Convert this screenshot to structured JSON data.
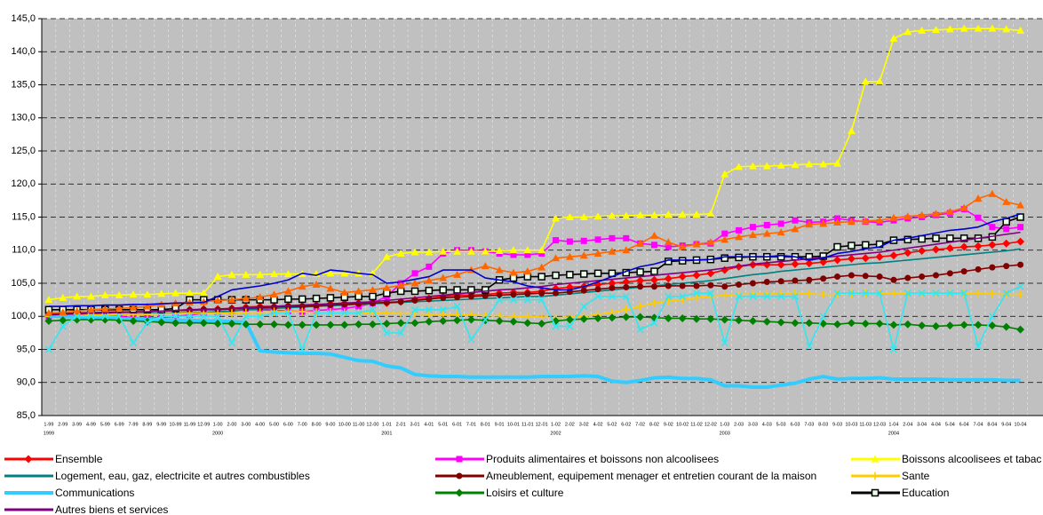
{
  "chart_data": {
    "type": "line",
    "categories": [
      "1-99",
      "2-99",
      "3-99",
      "4-99",
      "5-99",
      "6-99",
      "7-99",
      "8-99",
      "9-99",
      "10-99",
      "11-99",
      "12-99",
      "1-00",
      "2-00",
      "3-00",
      "4-00",
      "5-00",
      "6-00",
      "7-00",
      "8-00",
      "9-00",
      "10-00",
      "11-00",
      "12-00",
      "1-01",
      "2-01",
      "3-01",
      "4-01",
      "5-01",
      "6-01",
      "7-01",
      "8-01",
      "9-01",
      "10-01",
      "11-01",
      "12-01",
      "1-02",
      "2-02",
      "3-02",
      "4-02",
      "5-02",
      "6-02",
      "7-02",
      "8-02",
      "9-02",
      "10-02",
      "11-02",
      "12-02",
      "1-03",
      "2-03",
      "3-03",
      "4-03",
      "5-03",
      "6-03",
      "7-03",
      "8-03",
      "9-03",
      "10-03",
      "11-03",
      "12-03",
      "1-04",
      "2-04",
      "3-04",
      "4-04",
      "5-04",
      "6-04",
      "7-04",
      "8-04",
      "9-04",
      "10-04"
    ],
    "category_groups": [
      "1999",
      null,
      null,
      null,
      null,
      null,
      null,
      null,
      null,
      null,
      null,
      null,
      "2000",
      null,
      null,
      null,
      null,
      null,
      null,
      null,
      null,
      null,
      null,
      null,
      "2001",
      null,
      null,
      null,
      null,
      null,
      null,
      null,
      null,
      null,
      null,
      null,
      "2002",
      null,
      null,
      null,
      null,
      null,
      null,
      null,
      null,
      null,
      null,
      null,
      "2003",
      null,
      null,
      null,
      null,
      null,
      null,
      null,
      null,
      null,
      null,
      null,
      "2004",
      null,
      null,
      null,
      null,
      null,
      null,
      null,
      null,
      null
    ],
    "ylim": [
      85,
      145
    ],
    "yticks": [
      {
        "value": 85,
        "label": "85,0"
      },
      {
        "value": 90,
        "label": "90,0"
      },
      {
        "value": 95,
        "label": "95,0"
      },
      {
        "value": 100,
        "label": "100,0"
      },
      {
        "value": 105,
        "label": "105,0"
      },
      {
        "value": 110,
        "label": "110,0"
      },
      {
        "value": 115,
        "label": "115,0"
      },
      {
        "value": 120,
        "label": "120,0"
      },
      {
        "value": 125,
        "label": "125,0"
      },
      {
        "value": 130,
        "label": "130,0"
      },
      {
        "value": 135,
        "label": "135,0"
      },
      {
        "value": 140,
        "label": "140,0"
      },
      {
        "value": 145,
        "label": "145,0"
      }
    ],
    "grid": true,
    "series": [
      {
        "name": "Ensemble",
        "color": "#ff0000",
        "marker": "diamond",
        "values": [
          100.3,
          100.4,
          100.5,
          100.6,
          100.6,
          100.7,
          100.6,
          100.7,
          100.8,
          100.9,
          101,
          101.1,
          101.1,
          101.2,
          101.4,
          101.5,
          101.5,
          101.6,
          101.6,
          101.7,
          101.9,
          102,
          102,
          102,
          102,
          102.2,
          102.5,
          102.7,
          103,
          103.2,
          103.2,
          103.3,
          103.5,
          103.6,
          103.6,
          103.8,
          104.2,
          104.4,
          104.5,
          104.8,
          105,
          105.2,
          105.4,
          105.5,
          105.7,
          106,
          106.2,
          106.5,
          107,
          107.5,
          107.8,
          107.8,
          107.8,
          107.9,
          108,
          108.2,
          108.5,
          108.7,
          108.8,
          109,
          109.2,
          109.6,
          109.9,
          110.1,
          110.3,
          110.5,
          110.6,
          110.8,
          111,
          111.3
        ]
      },
      {
        "name": "Produits alimentaires et boissons non alcoolisees",
        "color": "#ff00ff",
        "marker": "square",
        "values": [
          100,
          100.2,
          100.3,
          100.4,
          100.2,
          100,
          99.8,
          99.7,
          99.8,
          100,
          100.2,
          100.5,
          100.6,
          100.8,
          101,
          101,
          100.9,
          100.8,
          100.7,
          100.9,
          101,
          101.2,
          101.5,
          102,
          103,
          105,
          106.5,
          107.5,
          109.5,
          110,
          110,
          109.8,
          109.5,
          109.3,
          109.3,
          109.5,
          111.5,
          111.3,
          111.4,
          111.6,
          111.8,
          111.8,
          111,
          110.8,
          110.5,
          110.7,
          110.9,
          111,
          112.5,
          113,
          113.5,
          113.8,
          114,
          114.5,
          114.2,
          114.3,
          114.8,
          114.5,
          114.3,
          114.2,
          114.5,
          114.8,
          115,
          115.3,
          115.6,
          116.2,
          114.9,
          113.5,
          113.2,
          113.5
        ]
      },
      {
        "name": "Boissons alcoolisees et tabac",
        "color": "#ffff00",
        "marker": "triangle",
        "values": [
          102.5,
          102.8,
          103,
          103,
          103.2,
          103.2,
          103.3,
          103.3,
          103.4,
          103.5,
          103.5,
          103.5,
          106,
          106.3,
          106.3,
          106.3,
          106.4,
          106.4,
          106.4,
          106.4,
          106.5,
          106.5,
          106.5,
          106.5,
          109,
          109.5,
          109.7,
          109.7,
          109.8,
          109.8,
          109.8,
          109.8,
          109.9,
          110,
          110,
          110,
          114.8,
          115,
          115,
          115.1,
          115.2,
          115.2,
          115.3,
          115.3,
          115.4,
          115.4,
          115.4,
          115.5,
          121.5,
          122.6,
          122.7,
          122.7,
          122.8,
          122.9,
          123,
          123,
          123.1,
          128,
          135.5,
          135.5,
          142,
          143,
          143.2,
          143.3,
          143.4,
          143.5,
          143.5,
          143.5,
          143.4,
          143.2
        ]
      },
      {
        "name": "Logement, eau, gaz, electricite et autres combustibles",
        "color": "#008080",
        "marker": "none",
        "values": [
          100,
          100,
          100.1,
          100.2,
          100.2,
          100.3,
          100.3,
          100.4,
          100.5,
          100.5,
          100.6,
          100.6,
          100.7,
          100.8,
          101,
          101.1,
          101.2,
          101.3,
          101.4,
          101.5,
          101.6,
          101.7,
          101.8,
          101.9,
          102,
          102.1,
          102.2,
          102.3,
          102.4,
          102.5,
          102.6,
          102.7,
          102.8,
          102.9,
          103,
          103,
          103.2,
          103.4,
          103.6,
          103.8,
          104,
          104.2,
          104.4,
          104.6,
          104.8,
          105,
          105.2,
          105.4,
          105.7,
          106,
          106.3,
          106.5,
          106.8,
          107,
          107.2,
          107.4,
          107.6,
          107.8,
          108,
          108.1,
          108.3,
          108.5,
          108.7,
          108.9,
          109.1,
          109.3,
          109.5,
          109.7,
          109.9,
          110.2
        ]
      },
      {
        "name": "Ameublement, equipement menager et entretien courant de la maison",
        "color": "#800000",
        "marker": "circle",
        "values": [
          100.3,
          100.4,
          100.5,
          100.5,
          100.6,
          100.6,
          100.7,
          100.7,
          100.8,
          100.9,
          100.9,
          101,
          101,
          101.1,
          101.2,
          101.3,
          101.4,
          101.5,
          101.5,
          101.6,
          101.7,
          101.8,
          101.9,
          102,
          102.1,
          102.2,
          102.4,
          102.6,
          102.8,
          102.9,
          103,
          103.1,
          103.2,
          103.3,
          103.4,
          103.5,
          103.5,
          103.7,
          103.9,
          104.1,
          104.3,
          104.4,
          104.5,
          104.5,
          104.6,
          104.6,
          104.6,
          104.7,
          104.5,
          104.8,
          105,
          105.2,
          105.3,
          105.4,
          105.5,
          105.7,
          106,
          106.2,
          106.1,
          106,
          105.5,
          105.8,
          106,
          106.2,
          106.5,
          106.8,
          107.1,
          107.4,
          107.6,
          107.8
        ]
      },
      {
        "name": "Sante",
        "color": "#ffcc00",
        "marker": "plus",
        "values": [
          100,
          100.1,
          100.1,
          100.2,
          100.2,
          100.3,
          100.3,
          100.3,
          100.4,
          100.4,
          100.5,
          100.5,
          100.5,
          100.5,
          100.6,
          100.6,
          100.7,
          100.7,
          100.7,
          100.6,
          100.6,
          100.6,
          100.5,
          100.5,
          100.5,
          100.4,
          100.4,
          100.3,
          100.3,
          100.2,
          100.2,
          100.1,
          100.1,
          100,
          100,
          99.9,
          99.8,
          99.9,
          100,
          100.3,
          100.6,
          101,
          101.5,
          102,
          102.3,
          102.5,
          102.8,
          103,
          103.2,
          103.3,
          103.4,
          103.4,
          103.5,
          103.5,
          103.4,
          103.3,
          103.3,
          103.4,
          103.5,
          103.5,
          103.5,
          103.5,
          103.4,
          103.4,
          103.5,
          103.5,
          103.5,
          103.4,
          103.3,
          103.3
        ]
      },
      {
        "name": "Communications",
        "color": "#33ccff",
        "marker": "none",
        "width": 4,
        "values": [
          100,
          100,
          99.9,
          99.8,
          99.7,
          99.6,
          99.6,
          99.5,
          99.5,
          99.4,
          99.4,
          99.3,
          99.3,
          99.2,
          99.1,
          94.8,
          94.6,
          94.5,
          94.4,
          94.4,
          94.3,
          93.8,
          93.3,
          93.2,
          92.5,
          92.2,
          91.2,
          91,
          90.9,
          90.9,
          90.8,
          90.8,
          90.8,
          90.8,
          90.8,
          90.9,
          90.9,
          90.9,
          91,
          90.9,
          90.2,
          90,
          90.3,
          90.7,
          90.8,
          90.6,
          90.6,
          90.4,
          89.5,
          89.5,
          89.3,
          89.3,
          89.6,
          89.9,
          90.5,
          90.9,
          90.5,
          90.6,
          90.6,
          90.7,
          90.5,
          90.5,
          90.5,
          90.5,
          90.4,
          90.4,
          90.4,
          90.4,
          90.3,
          90.3
        ]
      },
      {
        "name": "Loisirs et culture",
        "color": "#008000",
        "marker": "diamond",
        "values": [
          99.3,
          99.4,
          99.5,
          99.5,
          99.5,
          99.4,
          99.3,
          99.2,
          99.1,
          99,
          99,
          99,
          98.9,
          98.9,
          98.8,
          98.8,
          98.8,
          98.7,
          98.7,
          98.7,
          98.7,
          98.7,
          98.8,
          98.8,
          98.9,
          99,
          99,
          99.2,
          99.3,
          99.4,
          99.5,
          99.4,
          99.3,
          99.2,
          99,
          98.9,
          99.3,
          99.5,
          99.6,
          99.7,
          99.8,
          99.9,
          99.9,
          99.8,
          99.7,
          99.7,
          99.6,
          99.6,
          99.5,
          99.4,
          99.3,
          99.2,
          99.1,
          99,
          99,
          98.9,
          98.8,
          99,
          98.9,
          98.9,
          98.7,
          98.8,
          98.6,
          98.5,
          98.6,
          98.7,
          98.7,
          98.6,
          98.4,
          98
        ]
      },
      {
        "name": "Education",
        "color": "#000000",
        "marker": "square-open",
        "values": [
          101,
          101,
          101,
          101,
          101,
          101,
          101,
          101,
          101,
          101.2,
          102.5,
          102.5,
          102.5,
          102.5,
          102.5,
          102.5,
          102.5,
          102.6,
          102.6,
          102.7,
          102.8,
          102.9,
          103,
          103,
          103.5,
          103.8,
          103.8,
          103.9,
          104,
          104,
          104,
          104,
          105.5,
          105.8,
          106,
          106,
          106.2,
          106.3,
          106.4,
          106.5,
          106.5,
          106.6,
          106.7,
          106.8,
          108.3,
          108.4,
          108.5,
          108.6,
          108.8,
          108.9,
          109,
          109,
          109,
          109,
          109,
          109.1,
          110.5,
          110.7,
          110.8,
          110.9,
          111.5,
          111.6,
          111.7,
          111.8,
          111.8,
          111.8,
          111.8,
          112,
          114.3,
          115
        ]
      },
      {
        "name": "Autres biens et services",
        "color": "#800080",
        "marker": "none",
        "values": [
          100.2,
          100.3,
          100.4,
          100.5,
          100.5,
          100.6,
          100.6,
          100.7,
          100.8,
          100.9,
          101,
          101,
          101.1,
          101.2,
          101.3,
          101.4,
          101.5,
          101.6,
          101.7,
          101.8,
          101.9,
          102,
          102.1,
          102.2,
          102.4,
          102.6,
          102.8,
          103,
          103.2,
          103.4,
          103.6,
          103.8,
          104,
          104.1,
          104.3,
          104.5,
          104.8,
          105,
          105.2,
          105.4,
          105.6,
          105.8,
          106,
          106.2,
          106.4,
          106.6,
          106.8,
          107,
          107.3,
          107.6,
          107.9,
          108.1,
          108.3,
          108.5,
          108.7,
          108.9,
          109.1,
          109.3,
          109.5,
          109.7,
          110,
          110.3,
          110.6,
          110.9,
          111.2,
          111.5,
          111.8,
          112.1,
          112.4,
          112.7
        ]
      },
      {
        "name": null,
        "color": "#ff6600",
        "marker": "triangle",
        "values": [
          100.5,
          100.6,
          100.8,
          101,
          101.1,
          101.2,
          101.3,
          101.5,
          101.8,
          102,
          102.1,
          102.2,
          102.4,
          102.5,
          102.7,
          102.9,
          103.3,
          103.8,
          104.5,
          104.8,
          104.2,
          103.6,
          103.8,
          104,
          104.3,
          104.7,
          105,
          105.4,
          105.8,
          106.3,
          107,
          107.6,
          107,
          106.6,
          106.8,
          107.4,
          108.8,
          109,
          109.2,
          109.5,
          109.8,
          110,
          111,
          112.2,
          111.2,
          110.5,
          110.9,
          111.2,
          111.6,
          112,
          112.3,
          112.5,
          112.7,
          113.2,
          113.9,
          114,
          114.2,
          114.3,
          114.4,
          114.5,
          114.9,
          115.1,
          115.3,
          115.5,
          115.8,
          116.4,
          117.8,
          118.5,
          117.3,
          116.8
        ]
      },
      {
        "name": null,
        "color": "#0000cc",
        "marker": "none",
        "values": [
          101.5,
          101.5,
          101.6,
          101.6,
          101.7,
          101.7,
          101.8,
          101.8,
          101.9,
          102,
          102,
          102.1,
          103,
          104,
          104.3,
          104.6,
          105,
          105.5,
          106.5,
          106.2,
          107,
          106.8,
          106.5,
          106.3,
          105,
          105.2,
          105.6,
          106,
          107,
          107,
          107,
          105.8,
          105.5,
          105.2,
          104.6,
          104.3,
          104,
          104,
          104.5,
          105.2,
          106,
          106.8,
          107.5,
          107.9,
          108.5,
          108.5,
          108.5,
          108.6,
          109,
          109,
          109,
          109,
          109.2,
          109,
          108.5,
          108.8,
          109.5,
          109.8,
          110.2,
          110.5,
          111.5,
          111.8,
          112.2,
          112.6,
          113,
          113.2,
          113.5,
          114.3,
          114.8,
          115.5
        ]
      },
      {
        "name": null,
        "color": "#33e6f0",
        "marker": "x",
        "values": [
          95,
          98.5,
          100,
          100,
          100,
          100,
          96,
          99,
          100,
          100,
          100,
          100,
          100,
          96,
          100,
          100,
          100.5,
          100.5,
          95,
          100.5,
          100.5,
          100.5,
          100.5,
          101,
          97.5,
          97.5,
          101,
          101,
          101,
          101.5,
          96.5,
          99.5,
          102.5,
          102.5,
          102.5,
          102.5,
          98.5,
          98.5,
          101.5,
          103,
          103,
          103,
          98,
          99,
          103,
          103,
          103.5,
          103.5,
          96,
          103,
          103,
          103,
          103,
          103,
          95.5,
          100,
          103.5,
          103.5,
          103.5,
          103.5,
          95,
          103.5,
          103.5,
          103.5,
          103.5,
          103.5,
          95.5,
          100,
          103.5,
          104.5
        ]
      }
    ]
  }
}
